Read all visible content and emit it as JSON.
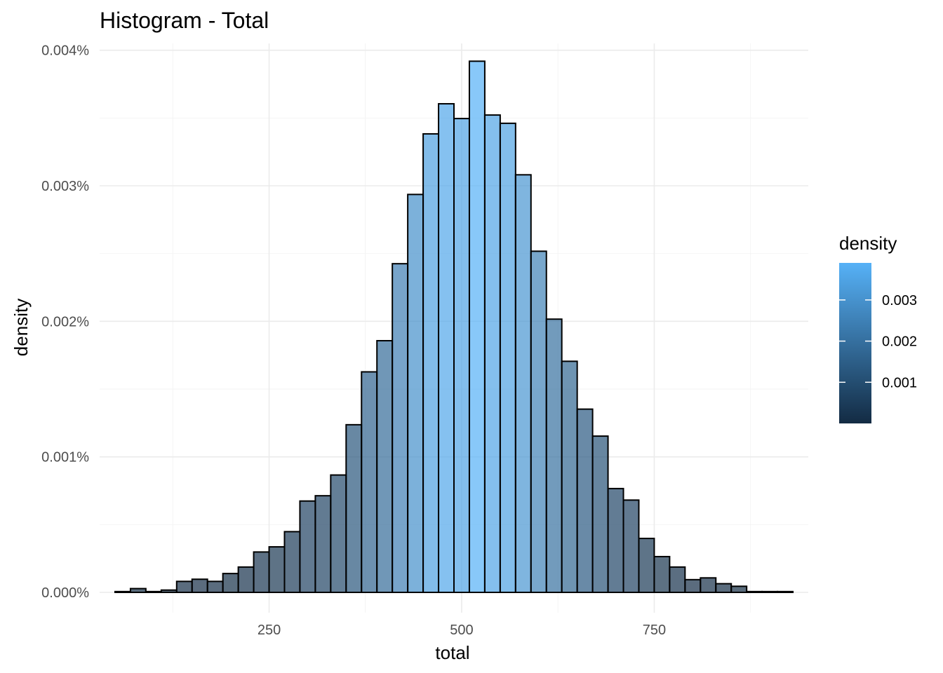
{
  "chart_data": {
    "type": "bar",
    "title": "Histogram - Total",
    "xlabel": "total",
    "ylabel": "density",
    "xlim": [
      30,
      950
    ],
    "ylim": [
      -0.00015,
      0.00405
    ],
    "x_ticks": [
      250,
      500,
      750
    ],
    "x_tick_labels": [
      "250",
      "500",
      "750"
    ],
    "x_minor_ticks": [
      125,
      375,
      625,
      875
    ],
    "y_ticks": [
      0,
      0.001,
      0.002,
      0.003,
      0.004
    ],
    "y_tick_labels": [
      "0.000%",
      "0.001%",
      "0.002%",
      "0.003%",
      "0.004%"
    ],
    "y_minor_ticks": [
      0.0005,
      0.0015,
      0.0025,
      0.0035
    ],
    "bin_width": 20,
    "bin_starts": [
      50,
      70,
      90,
      110,
      130,
      150,
      170,
      190,
      210,
      230,
      250,
      270,
      290,
      310,
      330,
      350,
      370,
      390,
      410,
      430,
      450,
      470,
      490,
      510,
      530,
      550,
      570,
      590,
      610,
      630,
      650,
      670,
      690,
      710,
      730,
      750,
      770,
      790,
      810,
      830,
      850,
      870,
      890,
      910
    ],
    "values": [
      6e-06,
      2.8e-05,
      6e-06,
      1.7e-05,
      8.1e-05,
      9.7e-05,
      8.1e-05,
      0.000139,
      0.000187,
      0.000298,
      0.000336,
      0.000448,
      0.000674,
      0.000713,
      0.000866,
      0.001237,
      0.001627,
      0.001857,
      0.002425,
      0.002936,
      0.003383,
      0.003605,
      0.003496,
      0.003919,
      0.003522,
      0.003461,
      0.003081,
      0.002517,
      0.002016,
      0.001705,
      0.001352,
      0.001153,
      0.000766,
      0.000681,
      0.000398,
      0.000264,
      0.000187,
      9.4e-05,
      0.000107,
      6.4e-05,
      4.5e-05,
      6e-06,
      6e-06,
      6e-06
    ],
    "grid": true,
    "legend": {
      "title": "density",
      "type": "colorbar",
      "position": "right",
      "range": [
        0,
        0.0039
      ],
      "ticks": [
        0.001,
        0.002,
        0.003
      ],
      "tick_labels": [
        "0.001",
        "0.002",
        "0.003"
      ],
      "color_low": "#132B43",
      "color_high": "#56B1F7"
    }
  }
}
